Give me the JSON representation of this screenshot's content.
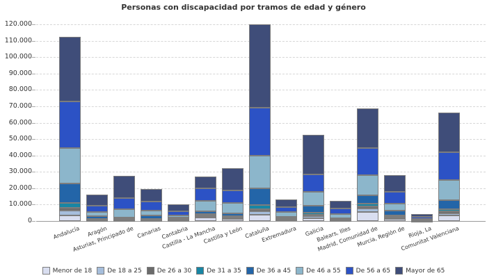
{
  "chart_data": {
    "type": "bar",
    "stacked": true,
    "title": "Personas con discapacidad por tramos de edad y género",
    "xlabel": "",
    "ylabel": "",
    "ylim": [
      0,
      120000
    ],
    "ytick_interval": 10000,
    "ytick_labels": [
      "0",
      "10.000",
      "20.000",
      "30.000",
      "40.000",
      "50.000",
      "60.000",
      "70.000",
      "80.000",
      "90.000",
      "100.000",
      "110.000",
      "120.000"
    ],
    "grid": "horizontal-dashed",
    "legend_position": "bottom",
    "categories": [
      "Andalucía",
      "Aragón",
      "Asturias, Principado de",
      "Canarias",
      "Cantabria",
      "Castilla - La Mancha",
      "Castilla y León",
      "Cataluña",
      "Extremadura",
      "Galicia",
      "Balears, Illes",
      "Madrid, Comunidad de",
      "Murcia, Región de",
      "Rioja, La",
      "Comunitat Valenciana"
    ],
    "series": [
      {
        "name": "Menor de 18",
        "color": "#d9def0",
        "values": [
          3400,
          400,
          400,
          300,
          300,
          2100,
          1100,
          3900,
          700,
          1700,
          300,
          5700,
          1400,
          200,
          3500
        ]
      },
      {
        "name": "De 18 a 25",
        "color": "#a6bedc",
        "values": [
          2900,
          300,
          300,
          200,
          200,
          1000,
          600,
          2100,
          400,
          1300,
          200,
          2000,
          800,
          100,
          1300
        ]
      },
      {
        "name": "De 26 a 30",
        "color": "#6b6b6b",
        "values": [
          1900,
          300,
          300,
          400,
          300,
          600,
          500,
          1100,
          300,
          800,
          200,
          1100,
          500,
          100,
          1000
        ]
      },
      {
        "name": "De 31 a 35",
        "color": "#1886a4",
        "values": [
          2900,
          400,
          400,
          400,
          300,
          700,
          600,
          2800,
          400,
          1300,
          300,
          1800,
          800,
          100,
          1400
        ]
      },
      {
        "name": "De 36 a 45",
        "color": "#2365a8",
        "values": [
          11900,
          1500,
          800,
          2100,
          900,
          1700,
          1800,
          10200,
          900,
          4200,
          700,
          5200,
          2800,
          300,
          5400
        ]
      },
      {
        "name": "De 46 a 55",
        "color": "#8cb6cb",
        "values": [
          21700,
          2700,
          5200,
          3100,
          1300,
          6400,
          6400,
          19800,
          2700,
          8500,
          2400,
          12000,
          4500,
          600,
          12600
        ]
      },
      {
        "name": "De 56 a 65",
        "color": "#2c52c5",
        "values": [
          28100,
          3900,
          6400,
          5400,
          2500,
          7300,
          7800,
          29400,
          3100,
          10600,
          3500,
          16700,
          6800,
          1300,
          16700
        ]
      },
      {
        "name": "Mayor de 65",
        "color": "#3f4d79",
        "values": [
          39500,
          6700,
          13800,
          7400,
          4200,
          7500,
          13400,
          50500,
          4800,
          24300,
          4700,
          24300,
          10200,
          1500,
          24400
        ]
      }
    ]
  }
}
